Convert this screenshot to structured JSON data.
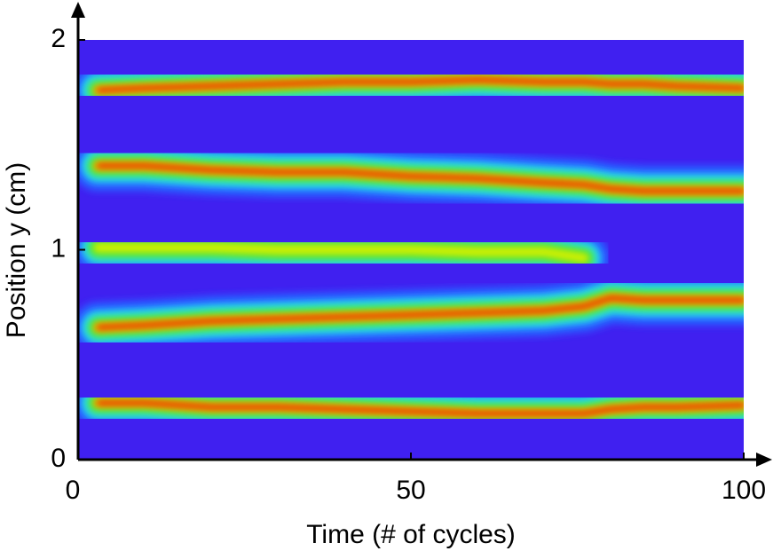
{
  "chart_data": {
    "type": "ridges",
    "xlabel": "Time (# of cycles)",
    "ylabel": "Position y (cm)",
    "xlim": [
      0,
      100
    ],
    "xticks": [
      0,
      50,
      100
    ],
    "ylim": [
      0,
      2
    ],
    "yticks": [
      0,
      1,
      2
    ],
    "background": "#4020f0",
    "x": [
      3,
      10,
      20,
      30,
      40,
      50,
      60,
      70,
      76,
      80,
      85,
      90,
      100
    ],
    "series": [
      {
        "color": "#e00000",
        "values": [
          1.76,
          1.77,
          1.78,
          1.79,
          1.8,
          1.8,
          1.81,
          1.8,
          1.8,
          1.79,
          1.79,
          1.78,
          1.77
        ]
      },
      {
        "color": "#e00000",
        "values": [
          1.4,
          1.4,
          1.38,
          1.37,
          1.37,
          1.35,
          1.34,
          1.32,
          1.31,
          1.29,
          1.28,
          1.28,
          1.28
        ]
      },
      {
        "color": "#d0f000",
        "values": [
          1.01,
          1.01,
          1.01,
          1.0,
          1.0,
          1.0,
          0.99,
          0.99,
          0.96,
          null,
          null,
          null,
          null
        ]
      },
      {
        "color": "#e00000",
        "values": [
          0.63,
          0.64,
          0.66,
          0.67,
          0.68,
          0.69,
          0.7,
          0.71,
          0.73,
          0.77,
          0.76,
          0.76,
          0.76
        ]
      },
      {
        "color": "#e00000",
        "values": [
          0.27,
          0.27,
          0.25,
          0.25,
          0.24,
          0.23,
          0.22,
          0.22,
          0.22,
          0.24,
          0.25,
          0.25,
          0.26
        ]
      }
    ]
  }
}
